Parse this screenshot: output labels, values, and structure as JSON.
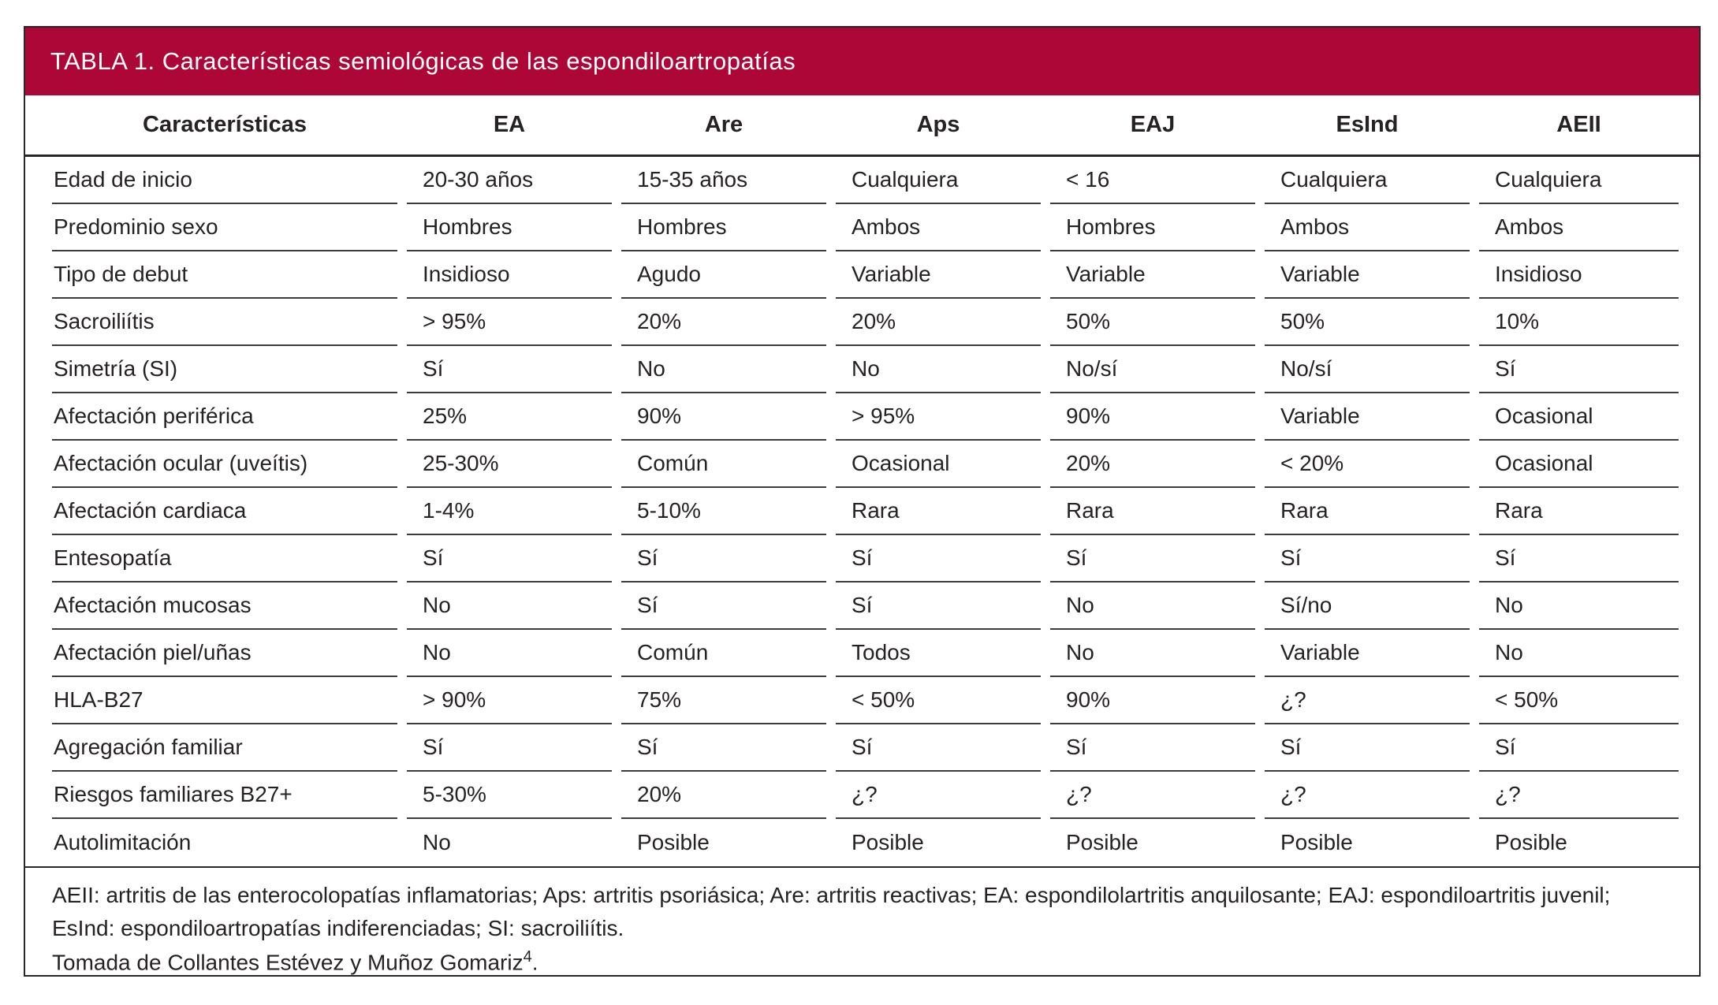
{
  "table": {
    "title": "TABLA 1. Características semiológicas de las espondiloartropatías",
    "columns": [
      "Características",
      "EA",
      "Are",
      "Aps",
      "EAJ",
      "EsInd",
      "AEII"
    ],
    "rows": [
      {
        "label": "Edad de inicio",
        "values": [
          "20-30 años",
          "15-35 años",
          "Cualquiera",
          "< 16",
          "Cualquiera",
          "Cualquiera"
        ]
      },
      {
        "label": "Predominio sexo",
        "values": [
          "Hombres",
          "Hombres",
          "Ambos",
          "Hombres",
          "Ambos",
          "Ambos"
        ]
      },
      {
        "label": "Tipo de debut",
        "values": [
          "Insidioso",
          "Agudo",
          "Variable",
          "Variable",
          "Variable",
          "Insidioso"
        ]
      },
      {
        "label": "Sacroiliítis",
        "values": [
          "> 95%",
          "20%",
          "20%",
          "50%",
          "50%",
          "10%"
        ]
      },
      {
        "label": "Simetría (SI)",
        "values": [
          "Sí",
          "No",
          "No",
          "No/sí",
          "No/sí",
          "Sí"
        ]
      },
      {
        "label": "Afectación periférica",
        "values": [
          "25%",
          "90%",
          "> 95%",
          "90%",
          "Variable",
          "Ocasional"
        ]
      },
      {
        "label": "Afectación ocular (uveítis)",
        "values": [
          "25-30%",
          "Común",
          "Ocasional",
          "20%",
          "< 20%",
          "Ocasional"
        ]
      },
      {
        "label": "Afectación cardiaca",
        "values": [
          "1-4%",
          "5-10%",
          "Rara",
          "Rara",
          "Rara",
          "Rara"
        ]
      },
      {
        "label": "Entesopatía",
        "values": [
          "Sí",
          "Sí",
          "Sí",
          "Sí",
          "Sí",
          "Sí"
        ]
      },
      {
        "label": "Afectación mucosas",
        "values": [
          "No",
          "Sí",
          "Sí",
          "No",
          "Sí/no",
          "No"
        ]
      },
      {
        "label": "Afectación piel/uñas",
        "values": [
          "No",
          "Común",
          "Todos",
          "No",
          "Variable",
          "No"
        ]
      },
      {
        "label": "HLA-B27",
        "values": [
          "> 90%",
          "75%",
          "< 50%",
          "90%",
          "¿?",
          "< 50%"
        ]
      },
      {
        "label": "Agregación familiar",
        "values": [
          "Sí",
          "Sí",
          "Sí",
          "Sí",
          "Sí",
          "Sí"
        ]
      },
      {
        "label": "Riesgos familiares B27+",
        "values": [
          "5-30%",
          "20%",
          "¿?",
          "¿?",
          "¿?",
          "¿?"
        ]
      },
      {
        "label": "Autolimitación",
        "values": [
          "No",
          "Posible",
          "Posible",
          "Posible",
          "Posible",
          "Posible"
        ]
      }
    ],
    "footnotes": {
      "abbreviations": "AEII: artritis de las enterocolopatías inflamatorias; Aps: artritis psoriásica; Are: artritis reactivas; EA: espondilolartritis anquilosante; EAJ: espondiloartritis juvenil; EsInd: espondiloartropatías indiferenciadas; SI: sacroiliítis.",
      "source_prefix": "Tomada de Collantes Estévez y Muñoz Gomariz",
      "source_ref": "4",
      "source_suffix": "."
    },
    "colors": {
      "header_bg": "#AC0737",
      "header_text": "#FFFFFF",
      "border": "#2B2627",
      "text": "#262223"
    }
  }
}
